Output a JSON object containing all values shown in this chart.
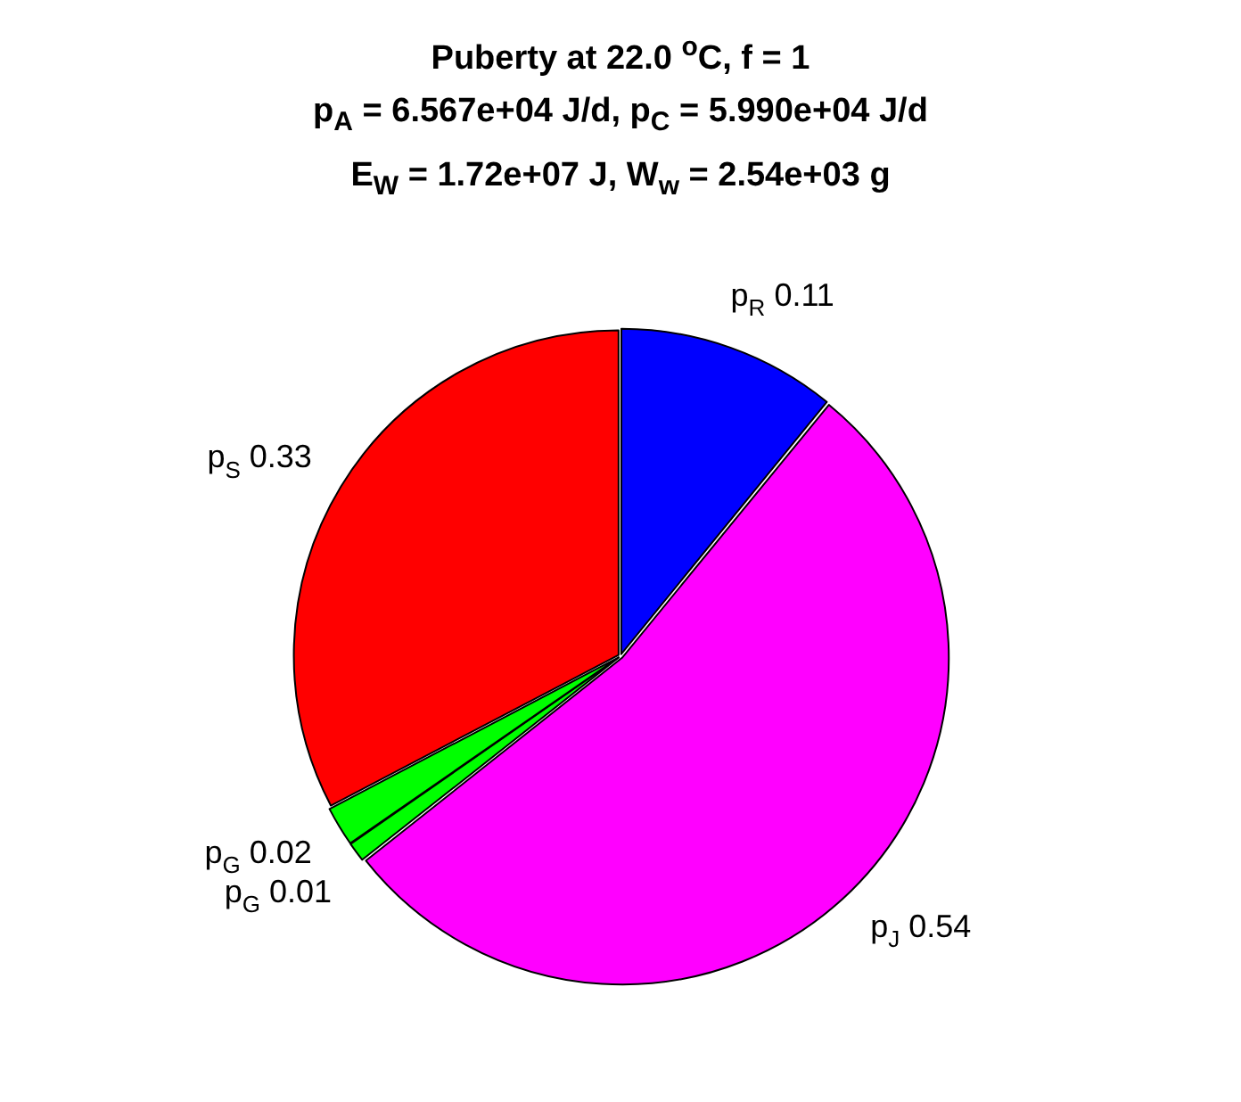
{
  "chart_data": {
    "type": "pie",
    "title": "Puberty at 22.0 $^{o}$C, f = 1\np$_{A}$ = 6.567e+04 J/d,  p$_{C}$ = 5.990e+04 J/d\nE$_{W}$ = 1.72e+07 J, W$_{w}$ = 2.54e+03 g",
    "categories": [
      "p$_{R}$",
      "p$_{J}$",
      "p$_{G}$",
      "p$_{G}$",
      "p$_{S}$"
    ],
    "values": [
      0.11,
      0.54,
      0.01,
      0.02,
      0.33
    ],
    "colors": [
      "#0000ff",
      "#ff00ff",
      "#00ff00",
      "#00ff00",
      "#ff0000"
    ],
    "data_labels": true
  }
}
